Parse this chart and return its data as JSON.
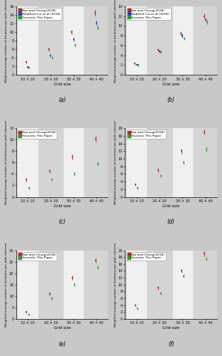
{
  "x_positions": [
    1,
    2,
    3,
    4
  ],
  "x_labels": [
    "10 × 10",
    "20 × 20",
    "30 × 30",
    "40 × 40"
  ],
  "x_label": "Grid size",
  "y_label": "Weighted average number of iterations per path element",
  "bg_gray": "#d4d4d4",
  "bg_white": "#f0f0f0",
  "fig_bg": "#c8c8c8",
  "subplots": [
    {
      "label": "(a)",
      "ylim": [
        0,
        16
      ],
      "yticks": [
        0,
        2,
        4,
        6,
        8,
        10,
        12,
        14,
        16
      ],
      "series": [
        {
          "name": "Bae and Chung(2018)",
          "color": "#cc2222",
          "values": [
            3.0,
            6.0,
            10.0,
            14.5
          ],
          "yerr": [
            0.3,
            0.4,
            0.5,
            0.6
          ]
        },
        {
          "name": "Modified Cui et al.(2018)",
          "color": "#2244cc",
          "values": [
            1.8,
            4.5,
            8.3,
            12.2
          ],
          "yerr": [
            0.2,
            0.3,
            0.4,
            0.5
          ]
        },
        {
          "name": "Heuristic This Paper",
          "color": "#22aa22",
          "values": [
            1.7,
            4.0,
            7.0,
            11.0
          ],
          "yerr": [
            0.2,
            0.3,
            0.4,
            0.5
          ]
        }
      ]
    },
    {
      "label": "(b)",
      "ylim": [
        0,
        14
      ],
      "yticks": [
        0,
        2,
        4,
        6,
        8,
        10,
        12,
        14
      ],
      "series": [
        {
          "name": "Bae and Chung(2018)",
          "color": "#cc2222",
          "values": [
            2.3,
            5.1,
            8.5,
            12.0
          ],
          "yerr": [
            0.2,
            0.3,
            0.4,
            0.5
          ]
        },
        {
          "name": "Modified Cui et al.(2018)",
          "color": "#2244cc",
          "values": [
            2.1,
            4.8,
            8.0,
            11.3
          ],
          "yerr": [
            0.2,
            0.3,
            0.4,
            0.4
          ]
        },
        {
          "name": "Heuristic This Paper",
          "color": "#22aa22",
          "values": [
            2.0,
            4.7,
            7.5,
            10.8
          ],
          "yerr": [
            0.2,
            0.3,
            0.3,
            0.4
          ]
        }
      ]
    },
    {
      "label": "(c)",
      "ylim": [
        0,
        12
      ],
      "yticks": [
        0,
        2,
        4,
        6,
        8,
        10,
        12
      ],
      "series": [
        {
          "name": "Bae and Chung(2018)",
          "color": "#cc2222",
          "values": [
            3.0,
            4.5,
            7.0,
            10.1
          ],
          "yerr": [
            0.3,
            0.3,
            0.4,
            0.5
          ]
        },
        {
          "name": "Heuristic This Paper",
          "color": "#22aa22",
          "values": [
            1.5,
            3.0,
            4.0,
            5.8
          ],
          "yerr": [
            0.2,
            0.2,
            0.3,
            0.4
          ]
        }
      ]
    },
    {
      "label": "(d)",
      "ylim": [
        0,
        18
      ],
      "yticks": [
        0,
        2,
        4,
        6,
        8,
        10,
        12,
        14,
        16,
        18
      ],
      "series": [
        {
          "name": "Bae and Chung(2018)",
          "color": "#cc2222",
          "values": [
            3.3,
            7.0,
            12.0,
            17.0
          ],
          "yerr": [
            0.4,
            0.5,
            0.6,
            0.7
          ]
        },
        {
          "name": "Heuristic This Paper",
          "color": "#22aa22",
          "values": [
            2.3,
            5.5,
            9.0,
            12.5
          ],
          "yerr": [
            0.3,
            0.4,
            0.5,
            0.6
          ]
        }
      ]
    },
    {
      "label": "(e)",
      "ylim": [
        0,
        30
      ],
      "yticks": [
        0,
        5,
        10,
        15,
        20,
        25,
        30
      ],
      "series": [
        {
          "name": "Bae and Chung(2018)",
          "color": "#cc2222",
          "values": [
            3.0,
            11.0,
            18.0,
            25.5
          ],
          "yerr": [
            0.5,
            0.7,
            0.9,
            1.0
          ]
        },
        {
          "name": "Heuristic This Paper",
          "color": "#22aa22",
          "values": [
            1.8,
            9.0,
            15.0,
            22.5
          ],
          "yerr": [
            0.4,
            0.6,
            0.8,
            0.9
          ]
        }
      ]
    },
    {
      "label": "(f)",
      "ylim": [
        0,
        20
      ],
      "yticks": [
        0,
        2,
        4,
        6,
        8,
        10,
        12,
        14,
        16,
        18,
        20
      ],
      "series": [
        {
          "name": "Bae and Chung(2018)",
          "color": "#cc2222",
          "values": [
            4.0,
            9.0,
            14.0,
            19.0
          ],
          "yerr": [
            0.4,
            0.5,
            0.6,
            0.7
          ]
        },
        {
          "name": "Heuristic This Paper",
          "color": "#22aa22",
          "values": [
            3.0,
            7.5,
            12.5,
            17.5
          ],
          "yerr": [
            0.3,
            0.4,
            0.5,
            0.6
          ]
        }
      ]
    }
  ]
}
